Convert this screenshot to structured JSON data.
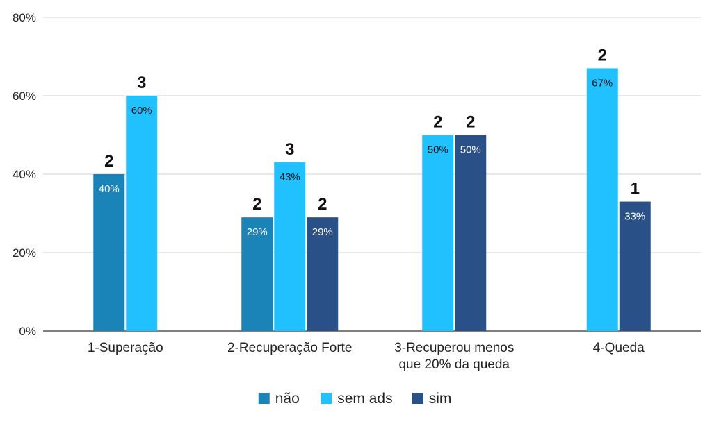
{
  "chart_data": {
    "type": "bar",
    "title": "",
    "xlabel": "",
    "ylabel": "",
    "ylim": [
      0,
      80
    ],
    "yticks": [
      "0%",
      "20%",
      "40%",
      "60%",
      "80%"
    ],
    "ytick_values": [
      0,
      20,
      40,
      60,
      80
    ],
    "grid": true,
    "legend_position": "bottom",
    "categories": [
      [
        "1-Superação"
      ],
      [
        "2-Recuperação Forte"
      ],
      [
        "3-Recuperou menos",
        "que 20% da queda"
      ],
      [
        "4-Queda"
      ]
    ],
    "series": [
      {
        "name": "não",
        "color": "#1a84b8",
        "label_color": "#ffffff",
        "values": [
          40,
          29,
          null,
          null
        ],
        "value_labels": [
          "40%",
          "29%",
          "",
          ""
        ],
        "counts": [
          "2",
          "2",
          "",
          ""
        ]
      },
      {
        "name": "sem ads",
        "color": "#21c0ff",
        "label_color": "#111111",
        "values": [
          60,
          43,
          50,
          67
        ],
        "value_labels": [
          "60%",
          "43%",
          "50%",
          "67%"
        ],
        "counts": [
          "3",
          "3",
          "2",
          "2"
        ]
      },
      {
        "name": "sim",
        "color": "#2a5187",
        "label_color": "#ffffff",
        "values": [
          null,
          29,
          50,
          33
        ],
        "value_labels": [
          "",
          "29%",
          "50%",
          "33%"
        ],
        "counts": [
          "",
          "2",
          "2",
          "1"
        ]
      }
    ]
  }
}
